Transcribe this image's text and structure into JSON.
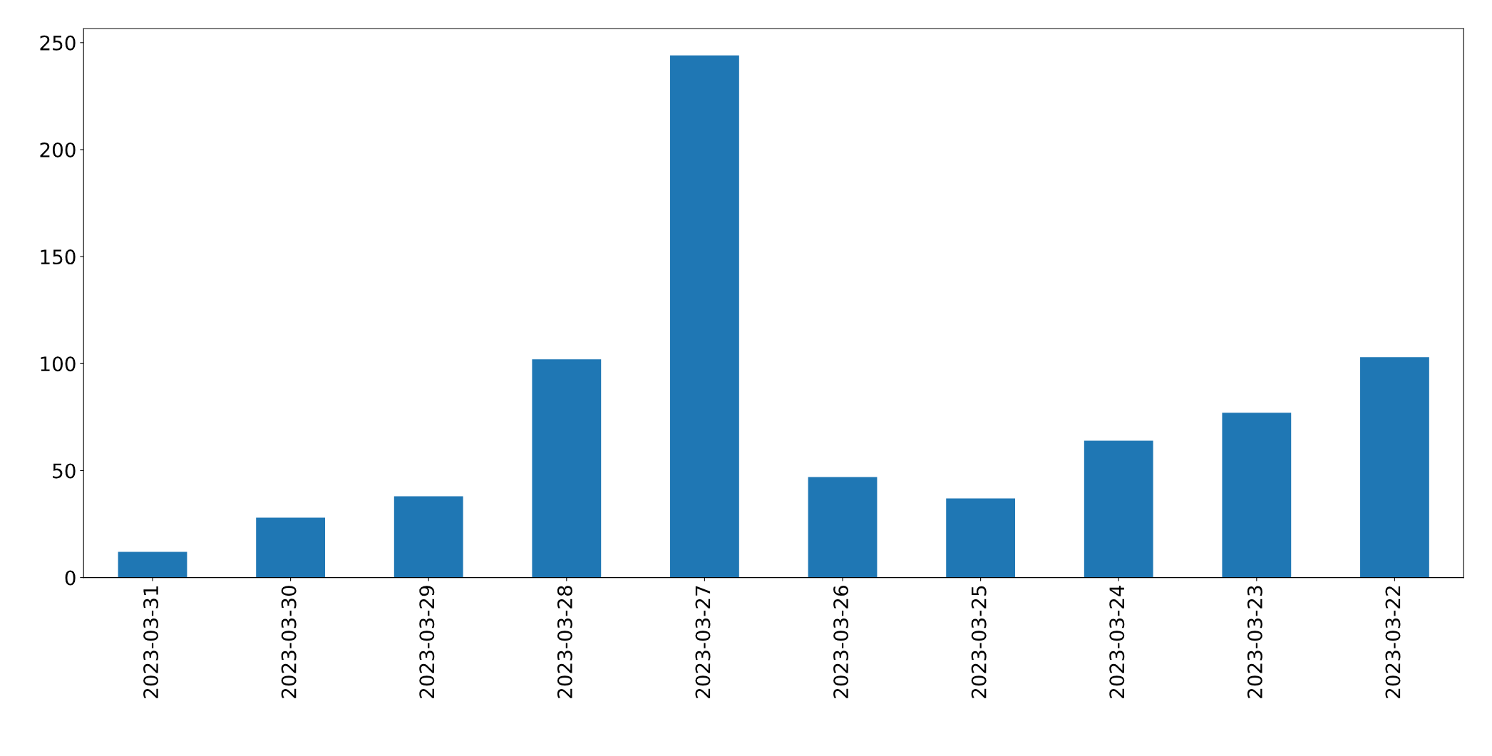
{
  "chart_data": {
    "type": "bar",
    "categories": [
      "2023-03-31",
      "2023-03-30",
      "2023-03-29",
      "2023-03-28",
      "2023-03-27",
      "2023-03-26",
      "2023-03-25",
      "2023-03-24",
      "2023-03-23",
      "2023-03-22"
    ],
    "values": [
      12,
      28,
      38,
      102,
      244,
      47,
      37,
      64,
      77,
      103
    ],
    "color": "#1f77b4",
    "ylim": [
      0,
      256.5
    ],
    "yticks": [
      0,
      50,
      100,
      150,
      200,
      250
    ],
    "grid": false,
    "legend": false
  }
}
